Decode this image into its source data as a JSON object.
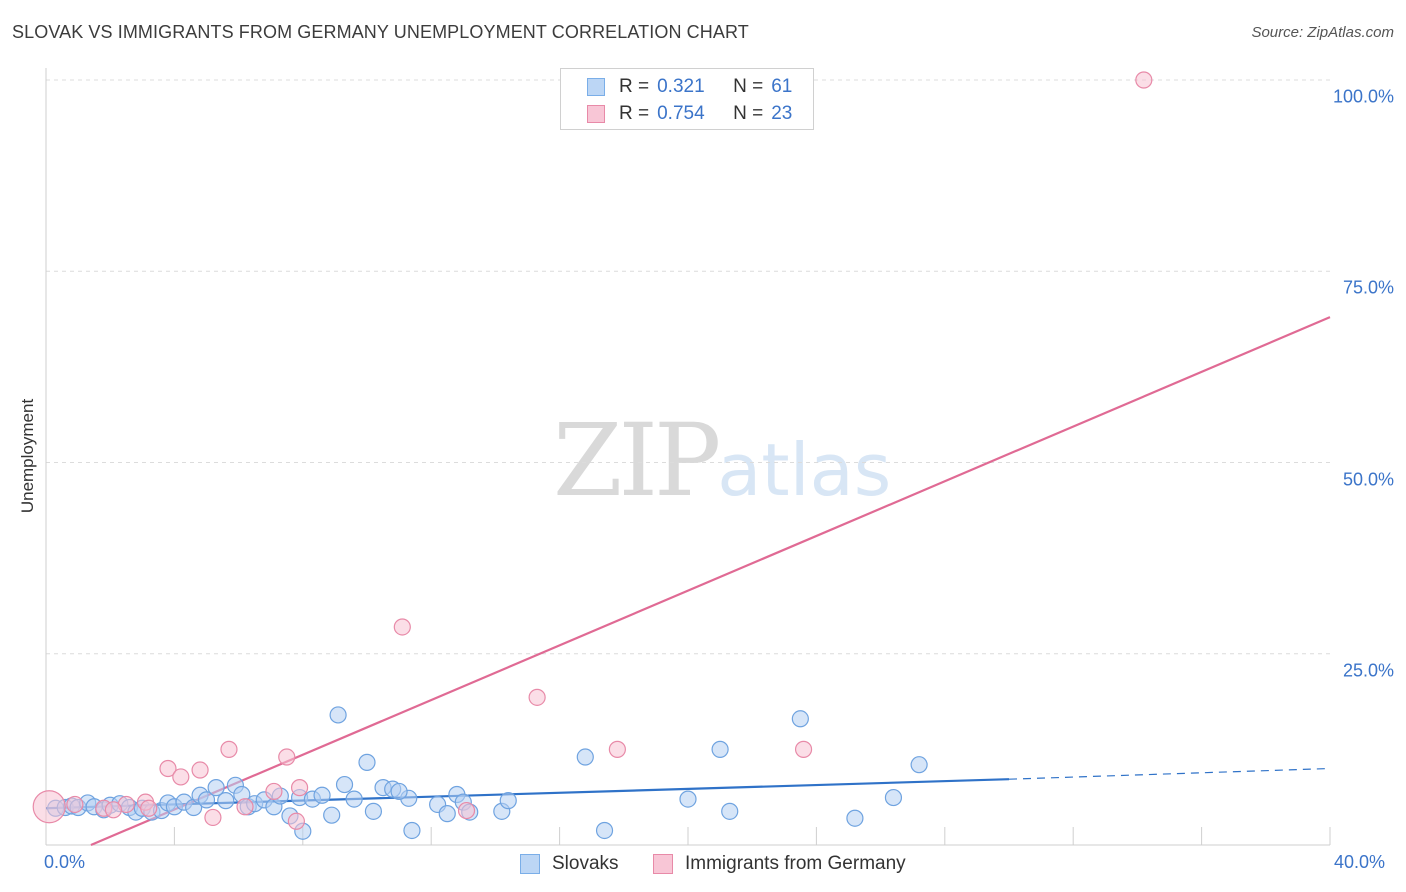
{
  "chart_data": {
    "type": "scatter",
    "title": "SLOVAK VS IMMIGRANTS FROM GERMANY UNEMPLOYMENT CORRELATION CHART",
    "source": "Source: ZipAtlas.com",
    "xlabel": "",
    "ylabel": "Unemployment",
    "xlim": [
      0,
      40
    ],
    "ylim": [
      0,
      100
    ],
    "x_tick_labels": [
      "0.0%",
      "40.0%"
    ],
    "y_ticks": [
      {
        "value": 100,
        "label": "100.0%"
      },
      {
        "value": 75,
        "label": "75.0%"
      },
      {
        "value": 50,
        "label": "50.0%"
      },
      {
        "value": 25,
        "label": "25.0%"
      }
    ],
    "watermark": {
      "zip": "ZIP",
      "atlas": "atlas"
    },
    "legend": {
      "r_label": "R =",
      "n_label": "N =",
      "entries": [
        {
          "name": "Slovaks",
          "r": "0.321",
          "n": "61",
          "color": "#7aaee8",
          "fill": "#bcd6f5"
        },
        {
          "name": "Immigrants from Germany",
          "r": "0.754",
          "n": "23",
          "color": "#e88aa8",
          "fill": "#f8c6d6"
        }
      ]
    },
    "series": [
      {
        "name": "Slovaks",
        "color": "#6fa3e0",
        "fill": "#b5d0f2",
        "trend": {
          "x0": 0.0,
          "y0": 4.8,
          "x1": 30.0,
          "y1": 8.6,
          "dash_to_x": 40.0,
          "dash_to_y": 10.0,
          "color": "#2f72c8"
        },
        "points": [
          [
            0.3,
            4.8
          ],
          [
            0.6,
            4.9
          ],
          [
            0.8,
            5.1
          ],
          [
            1.0,
            4.9
          ],
          [
            1.3,
            5.5
          ],
          [
            1.5,
            5.0
          ],
          [
            1.8,
            4.6
          ],
          [
            2.0,
            5.2
          ],
          [
            2.3,
            5.4
          ],
          [
            2.6,
            4.9
          ],
          [
            2.8,
            4.3
          ],
          [
            3.0,
            4.8
          ],
          [
            3.3,
            4.3
          ],
          [
            3.6,
            4.5
          ],
          [
            3.8,
            5.5
          ],
          [
            4.0,
            5.0
          ],
          [
            4.3,
            5.6
          ],
          [
            4.6,
            4.9
          ],
          [
            4.8,
            6.5
          ],
          [
            5.0,
            5.9
          ],
          [
            5.3,
            7.5
          ],
          [
            5.6,
            5.8
          ],
          [
            5.9,
            7.8
          ],
          [
            6.1,
            6.6
          ],
          [
            6.3,
            5.0
          ],
          [
            6.5,
            5.4
          ],
          [
            6.8,
            5.9
          ],
          [
            7.1,
            5.0
          ],
          [
            7.3,
            6.4
          ],
          [
            7.6,
            3.8
          ],
          [
            7.9,
            6.2
          ],
          [
            8.0,
            1.8
          ],
          [
            8.3,
            6.0
          ],
          [
            8.6,
            6.5
          ],
          [
            8.9,
            3.9
          ],
          [
            9.1,
            17.0
          ],
          [
            9.3,
            7.9
          ],
          [
            9.6,
            6.0
          ],
          [
            10.0,
            10.8
          ],
          [
            10.2,
            4.4
          ],
          [
            10.5,
            7.5
          ],
          [
            10.8,
            7.3
          ],
          [
            11.3,
            6.1
          ],
          [
            11.4,
            1.9
          ],
          [
            12.2,
            5.3
          ],
          [
            12.5,
            4.1
          ],
          [
            12.8,
            6.6
          ],
          [
            13.0,
            5.6
          ],
          [
            13.2,
            4.3
          ],
          [
            14.2,
            4.4
          ],
          [
            16.8,
            11.5
          ],
          [
            17.4,
            1.9
          ],
          [
            20.0,
            6.0
          ],
          [
            21.0,
            12.5
          ],
          [
            21.3,
            4.4
          ],
          [
            23.5,
            16.5
          ],
          [
            25.2,
            3.5
          ],
          [
            26.4,
            6.2
          ],
          [
            27.2,
            10.5
          ],
          [
            14.4,
            5.8
          ],
          [
            11.0,
            7.0
          ]
        ]
      },
      {
        "name": "Immigrants from Germany",
        "color": "#e88aa8",
        "fill": "#f7c3d3",
        "trend": {
          "x0": 1.4,
          "y0": 0.0,
          "x1": 40.0,
          "y1": 69.0,
          "color": "#e06a94"
        },
        "points": [
          [
            0.1,
            5.0
          ],
          [
            0.9,
            5.3
          ],
          [
            1.8,
            4.8
          ],
          [
            2.5,
            5.3
          ],
          [
            3.1,
            5.6
          ],
          [
            3.8,
            10.0
          ],
          [
            4.2,
            8.9
          ],
          [
            4.8,
            9.8
          ],
          [
            5.2,
            3.6
          ],
          [
            5.7,
            12.5
          ],
          [
            6.2,
            5.0
          ],
          [
            7.1,
            7.0
          ],
          [
            7.5,
            11.5
          ],
          [
            7.8,
            3.1
          ],
          [
            7.9,
            7.5
          ],
          [
            11.1,
            28.5
          ],
          [
            13.1,
            4.5
          ],
          [
            15.3,
            19.3
          ],
          [
            17.8,
            12.5
          ],
          [
            23.6,
            12.5
          ],
          [
            34.2,
            100.0
          ],
          [
            3.2,
            4.8
          ],
          [
            2.1,
            4.6
          ]
        ]
      }
    ]
  }
}
